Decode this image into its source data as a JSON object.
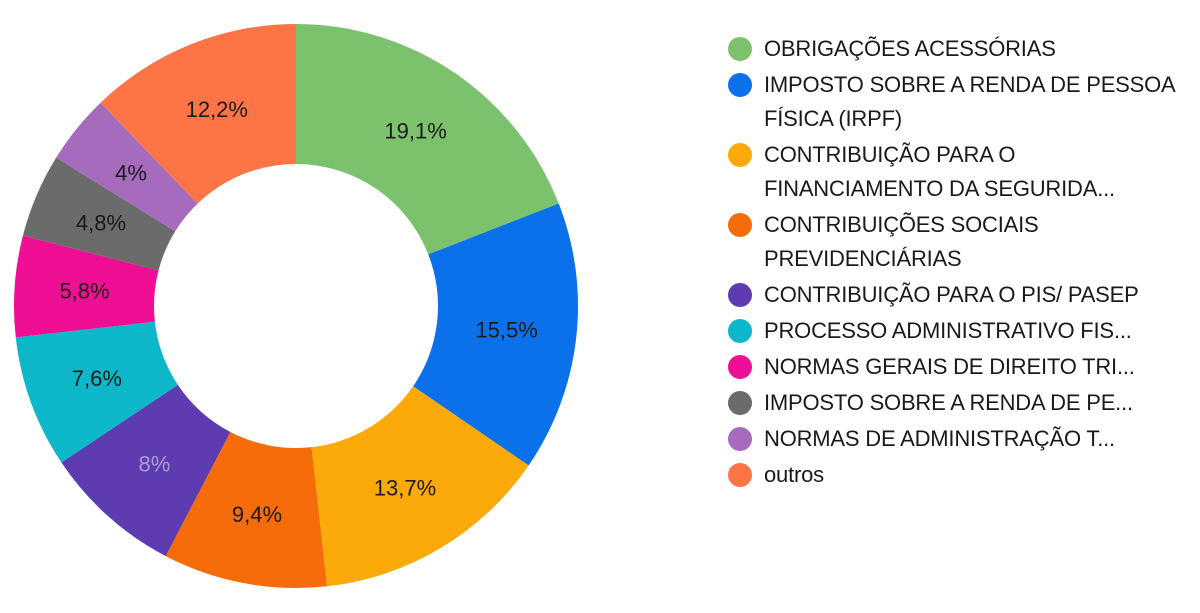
{
  "chart_data": {
    "type": "pie",
    "donut": true,
    "start": "top, clockwise",
    "legend_position": "right",
    "slices": [
      {
        "name": "OBRIGAÇÕES ACESSÓRIAS",
        "value": 19.1,
        "label": "19,1%",
        "color": "#7cc26d",
        "label_color": "#1a1a1a"
      },
      {
        "name": "IMPOSTO SOBRE A RENDA DE PESSOA FÍSICA (IRPF)",
        "value": 15.5,
        "label": "15,5%",
        "color": "#0b71ea",
        "label_color": "#1a1a1a"
      },
      {
        "name": "CONTRIBUIÇÃO PARA O FINANCIAMENTO DA SEGURIDA...",
        "value": 13.7,
        "label": "13,7%",
        "color": "#fbaa0a",
        "label_color": "#1a1a1a"
      },
      {
        "name": "CONTRIBUIÇÕES SOCIAIS PREVIDENCIÁRIAS",
        "value": 9.4,
        "label": "9,4%",
        "color": "#f66c0a",
        "label_color": "#1a1a1a"
      },
      {
        "name": "CONTRIBUIÇÃO PARA O PIS/ PASEP",
        "value": 8.0,
        "label": "8%",
        "color": "#5e3bb1",
        "label_color": "#a99bd3"
      },
      {
        "name": "PROCESSO ADMINISTRATIVO FIS...",
        "value": 7.6,
        "label": "7,6%",
        "color": "#0cb7ca",
        "label_color": "#1a1a1a"
      },
      {
        "name": "NORMAS GERAIS DE DIREITO TRI...",
        "value": 5.8,
        "label": "5,8%",
        "color": "#ee0f94",
        "label_color": "#1a1a1a"
      },
      {
        "name": "IMPOSTO SOBRE A RENDA DE PE...",
        "value": 4.8,
        "label": "4,8%",
        "color": "#6b6b6b",
        "label_color": "#1a1a1a"
      },
      {
        "name": "NORMAS DE ADMINISTRAÇÃO T...",
        "value": 4.0,
        "label": "4%",
        "color": "#a66bbd",
        "label_color": "#1a1a1a"
      },
      {
        "name": "outros",
        "value": 12.2,
        "label": "12,2%",
        "color": "#fd7447",
        "label_color": "#1a1a1a"
      }
    ]
  },
  "legend": {
    "items": [
      {
        "text": "OBRIGAÇÕES ACESSÓRIAS",
        "color": "#7cc26d"
      },
      {
        "text": "IMPOSTO SOBRE A RENDA DE PESSOA FÍSICA (IRPF)",
        "color": "#0b71ea"
      },
      {
        "text": "CONTRIBUIÇÃO PARA O FINANCIAMENTO DA SEGURIDA...",
        "color": "#fbaa0a"
      },
      {
        "text": "CONTRIBUIÇÕES SOCIAIS PREVIDENCIÁRIAS",
        "color": "#f66c0a"
      },
      {
        "text": "CONTRIBUIÇÃO PARA O PIS/ PASEP",
        "color": "#5e3bb1"
      },
      {
        "text": "PROCESSO ADMINISTRATIVO FIS...",
        "color": "#0cb7ca"
      },
      {
        "text": "NORMAS GERAIS DE DIREITO TRI...",
        "color": "#ee0f94"
      },
      {
        "text": "IMPOSTO SOBRE A RENDA DE PE...",
        "color": "#6b6b6b"
      },
      {
        "text": "NORMAS DE ADMINISTRAÇÃO T...",
        "color": "#a66bbd"
      },
      {
        "text": "outros",
        "color": "#fd7447"
      }
    ]
  }
}
